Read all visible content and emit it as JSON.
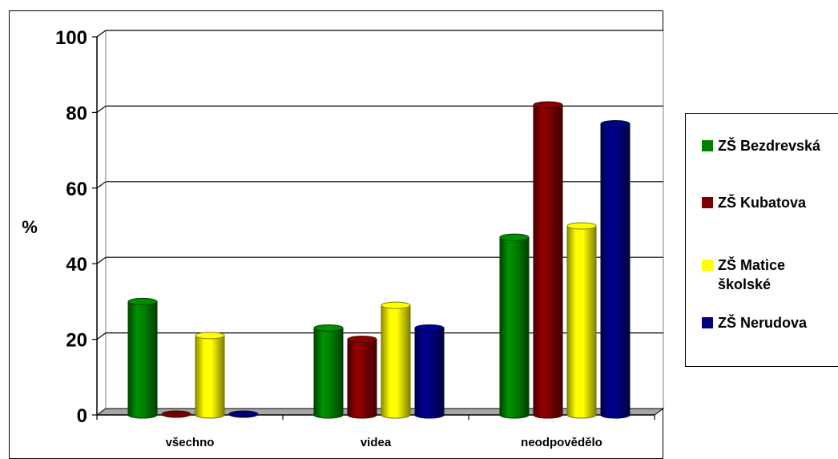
{
  "chart_data": {
    "type": "bar",
    "title": "",
    "xlabel": "",
    "ylabel": "%",
    "ylim": [
      0,
      100
    ],
    "yticks": [
      "0",
      "20",
      "40",
      "60",
      "80",
      "100"
    ],
    "grid": true,
    "legend_position": "right",
    "categories": [
      "všechno",
      "videa",
      "neodpovědělo"
    ],
    "series": [
      {
        "name": "ZŠ Bezdrevská",
        "color": "#008000",
        "values": [
          30,
          23,
          47
        ]
      },
      {
        "name": "ZŠ Kubatova",
        "color": "#800000",
        "values": [
          0,
          20,
          82
        ]
      },
      {
        "name": "ZŠ Matice školské",
        "color": "#ffff00",
        "values": [
          21,
          29,
          50
        ]
      },
      {
        "name": "ZŠ Nerudova",
        "color": "#000080",
        "values": [
          0,
          23,
          77
        ]
      }
    ]
  },
  "legend": {
    "items": [
      {
        "lines": [
          "ZŠ Bezdrevská"
        ],
        "color": "#008000"
      },
      {
        "lines": [
          "ZŠ Kubatova"
        ],
        "color": "#800000"
      },
      {
        "lines": [
          "ZŠ Matice",
          "školské"
        ],
        "color": "#ffff00"
      },
      {
        "lines": [
          "ZŠ Nerudova"
        ],
        "color": "#000080"
      }
    ]
  }
}
